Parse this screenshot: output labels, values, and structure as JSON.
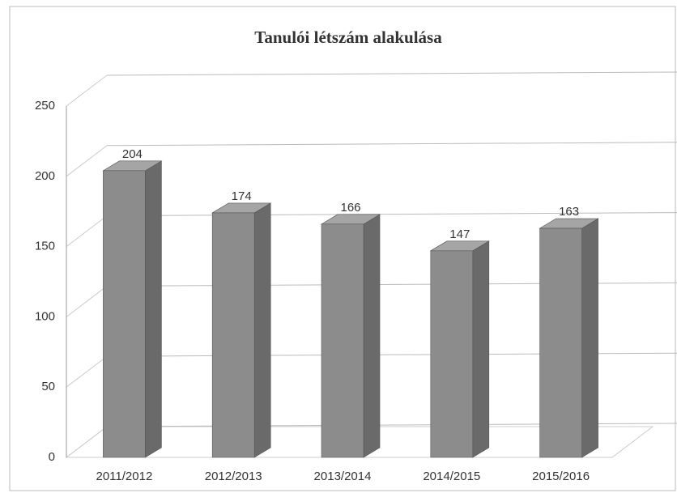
{
  "chart_data": {
    "type": "bar3d",
    "title": "Tanulói létszám alakulása",
    "categories": [
      "2011/2012",
      "2012/2013",
      "2013/2014",
      "2014/2015",
      "2015/2016"
    ],
    "values": [
      204,
      174,
      166,
      147,
      163
    ],
    "color": "#8c8c8c",
    "ylim": [
      0,
      250
    ],
    "yticks": [
      0,
      50,
      100,
      150,
      200,
      250
    ],
    "grid": true
  }
}
